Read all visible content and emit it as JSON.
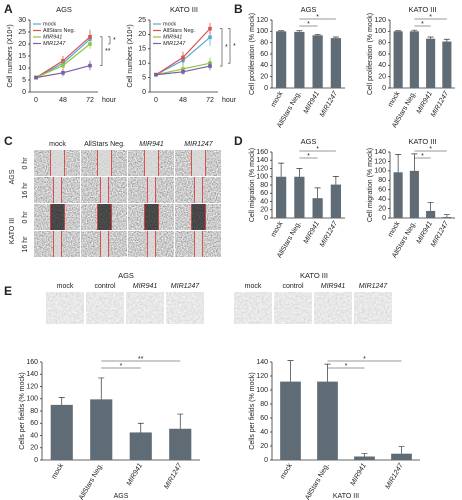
{
  "panel_labels": [
    "A",
    "B",
    "C",
    "D",
    "E"
  ],
  "scratch_assay": {
    "columns": [
      "mock",
      "AllStars Neg.",
      "MIR941",
      "MIR1247"
    ],
    "rows": [
      {
        "cell_line": "AGS",
        "times": [
          "0 hr",
          "16 hr"
        ]
      },
      {
        "cell_line": "KATO III",
        "times": [
          "0 hr",
          "16 hr"
        ]
      }
    ]
  },
  "invasion_images": [
    {
      "title": "AGS",
      "columns": [
        "mock",
        "control",
        "MIR941",
        "MIR1247"
      ]
    },
    {
      "title": "KATO III",
      "columns": [
        "mock",
        "control",
        "MIR941",
        "MIR1247"
      ]
    }
  ],
  "chart_data": [
    {
      "type": "line",
      "title": "AGS",
      "y_label": "Cell numbers (X10⁴)",
      "x_label": "hour",
      "categories": [
        "0",
        "48",
        "72"
      ],
      "ylim": [
        0,
        30
      ],
      "yticks": [
        0,
        5,
        10,
        15,
        20,
        25,
        30
      ],
      "legend": "upper left",
      "annotations": [
        "**",
        "*"
      ],
      "series": [
        {
          "name": "mock",
          "color": "#5aa9d6",
          "values": [
            6,
            12,
            22
          ],
          "errors": [
            0.5,
            2,
            2.5
          ]
        },
        {
          "name": "AllStars Neg.",
          "color": "#d9534f",
          "values": [
            6,
            13,
            23
          ],
          "errors": [
            0.5,
            2,
            3
          ]
        },
        {
          "name": "MIR941",
          "color": "#8dc63f",
          "values": [
            6,
            11,
            20
          ],
          "errors": [
            0.5,
            2,
            2
          ]
        },
        {
          "name": "MIR1247",
          "color": "#7b5ea7",
          "values": [
            6,
            8,
            11
          ],
          "errors": [
            0.5,
            1.5,
            2
          ]
        }
      ]
    },
    {
      "type": "line",
      "title": "KATO III",
      "y_label": "Cell numbers (X10⁴)",
      "x_label": "hour",
      "categories": [
        "0",
        "48",
        "72"
      ],
      "ylim": [
        0,
        25
      ],
      "yticks": [
        0,
        5,
        10,
        15,
        20,
        25
      ],
      "legend": "upper left",
      "annotations": [
        "*",
        "*"
      ],
      "series": [
        {
          "name": "mock",
          "color": "#5aa9d6",
          "values": [
            6,
            11,
            19
          ],
          "errors": [
            0.5,
            2,
            3
          ]
        },
        {
          "name": "AllStars Neg.",
          "color": "#d9534f",
          "values": [
            6,
            12,
            22
          ],
          "errors": [
            0.5,
            2,
            2
          ]
        },
        {
          "name": "MIR941",
          "color": "#8dc63f",
          "values": [
            6,
            8,
            10
          ],
          "errors": [
            0.5,
            1.5,
            2
          ]
        },
        {
          "name": "MIR1247",
          "color": "#7b5ea7",
          "values": [
            6,
            7,
            9
          ],
          "errors": [
            0.5,
            1,
            1.5
          ]
        }
      ]
    },
    {
      "type": "bar",
      "title": "AGS",
      "y_label": "Cell proliferation (% mock)",
      "categories": [
        "mock",
        "AllStars Neg.",
        "MIR941",
        "MIR1247"
      ],
      "ylim": [
        0,
        120
      ],
      "yticks": [
        0,
        20,
        40,
        60,
        80,
        100,
        120
      ],
      "color": "#5f6b75",
      "annotations": [
        "*",
        "*"
      ],
      "values": [
        100,
        99,
        93,
        88
      ],
      "errors": [
        1,
        2,
        1.5,
        2
      ]
    },
    {
      "type": "bar",
      "title": "KATO III",
      "y_label": "Cell proliferation (% mock)",
      "categories": [
        "mock",
        "AllStars Neg.",
        "MIR941",
        "MIR1247"
      ],
      "ylim": [
        0,
        120
      ],
      "yticks": [
        0,
        20,
        40,
        60,
        80,
        100,
        120
      ],
      "color": "#5f6b75",
      "annotations": [
        "*",
        "*"
      ],
      "values": [
        100,
        100,
        87,
        82
      ],
      "errors": [
        1,
        2,
        3,
        4
      ]
    },
    {
      "type": "bar",
      "title": "AGS",
      "y_label": "Cell migration (% mock)",
      "categories": [
        "mock",
        "AllStars Neg.",
        "MIR941",
        "MIR1247"
      ],
      "ylim": [
        0,
        160
      ],
      "yticks": [
        0,
        20,
        40,
        60,
        80,
        100,
        120,
        140,
        160
      ],
      "color": "#5f6b75",
      "annotations": [
        "*",
        "*"
      ],
      "values": [
        100,
        100,
        48,
        81
      ],
      "errors": [
        33,
        20,
        25,
        20
      ]
    },
    {
      "type": "bar",
      "title": "KATO III",
      "y_label": "Cell migration (% mock)",
      "categories": [
        "mock",
        "AllStars Neg.",
        "MIR941",
        "MIR1247"
      ],
      "ylim": [
        0,
        140
      ],
      "yticks": [
        0,
        20,
        40,
        60,
        80,
        100,
        120,
        140
      ],
      "color": "#5f6b75",
      "annotations": [
        "*",
        "*"
      ],
      "values": [
        97,
        100,
        15,
        2
      ],
      "errors": [
        38,
        36,
        18,
        5
      ]
    },
    {
      "type": "bar",
      "y_label": "Cells per fields (% mock)",
      "x_label": "AGS",
      "categories": [
        "mock",
        "AllStars Neg.",
        "MIR941",
        "MIR1247"
      ],
      "ylim": [
        0,
        160
      ],
      "yticks": [
        0,
        20,
        40,
        60,
        80,
        100,
        120,
        140,
        160
      ],
      "color": "#5f6b75",
      "annotations": [
        "*",
        "**"
      ],
      "values": [
        90,
        99,
        45,
        51
      ],
      "errors": [
        12,
        35,
        15,
        24
      ]
    },
    {
      "type": "bar",
      "y_label": "Cells per fields (% mock)",
      "x_label": "KATO III",
      "categories": [
        "mock",
        "AllStars Neg.",
        "MIR941",
        "MIR1247"
      ],
      "ylim": [
        0,
        140
      ],
      "yticks": [
        0,
        20,
        40,
        60,
        80,
        100,
        120,
        140
      ],
      "color": "#5f6b75",
      "annotations": [
        "*",
        "*"
      ],
      "values": [
        112,
        112,
        5,
        9
      ],
      "errors": [
        30,
        25,
        4,
        10
      ]
    }
  ]
}
